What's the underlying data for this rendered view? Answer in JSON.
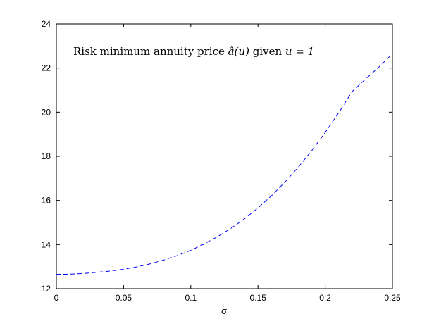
{
  "chart_data": {
    "type": "line",
    "title": "",
    "xlabel": "σ",
    "ylabel": "",
    "xlim": [
      0,
      0.25
    ],
    "ylim": [
      12,
      24
    ],
    "xticks": [
      0,
      0.05,
      0.1,
      0.15,
      0.2,
      0.25
    ],
    "xtick_labels": [
      "0",
      "0.05",
      "0.1",
      "0.15",
      "0.2",
      "0.25"
    ],
    "yticks": [
      12,
      14,
      16,
      18,
      20,
      22,
      24
    ],
    "ytick_labels": [
      "12",
      "14",
      "16",
      "18",
      "20",
      "22",
      "24"
    ],
    "grid": false,
    "annotation": {
      "prefix": "Risk minimum annuity price ",
      "math_a": "â(u)",
      "middle": " given ",
      "math_u": "u = 1"
    },
    "series": [
      {
        "style": "dashed",
        "color": "#0000ff",
        "x": [
          0,
          0.01,
          0.02,
          0.03,
          0.04,
          0.05,
          0.06,
          0.07,
          0.08,
          0.09,
          0.1,
          0.11,
          0.12,
          0.13,
          0.14,
          0.15,
          0.16,
          0.17,
          0.18,
          0.19,
          0.2,
          0.21,
          0.22,
          0.23,
          0.24,
          0.25
        ],
        "y": [
          12.65,
          12.66,
          12.69,
          12.74,
          12.8,
          12.88,
          12.99,
          13.13,
          13.3,
          13.5,
          13.74,
          14.03,
          14.36,
          14.74,
          15.17,
          15.66,
          16.21,
          16.83,
          17.51,
          18.26,
          19.08,
          19.97,
          20.93,
          21.5,
          22.05,
          22.65
        ]
      }
    ]
  }
}
